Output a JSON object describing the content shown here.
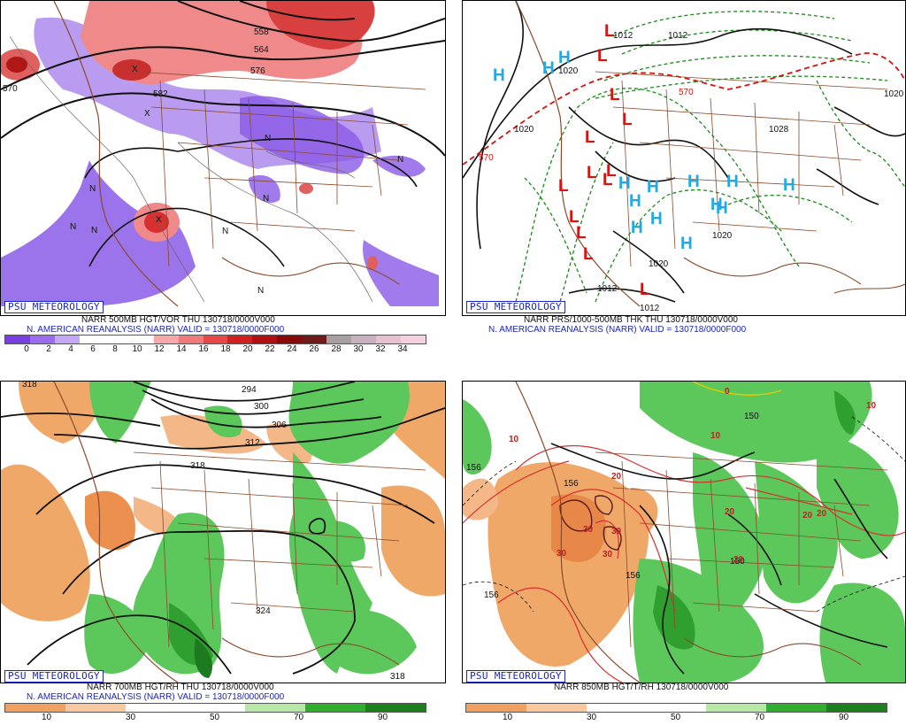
{
  "panels": {
    "vort500": {
      "brand": "PSU METEOROLOGY",
      "line1": "NARR 500MB HGT/VOR THU  130718/0000V000",
      "line2": "N. AMERICAN REANALYSIS (NARR) VALID = 130718/0000F000",
      "contour_labels": [
        "558",
        "564",
        "576",
        "582",
        "570"
      ],
      "colorbar": {
        "colors": [
          "#7a3fe0",
          "#9b6cf0",
          "#c4a8f7",
          "#ffffff",
          "#ffffff",
          "#ffffff",
          "#f7a8a8",
          "#f07a7a",
          "#e84848",
          "#d02020",
          "#b01010",
          "#8a0808",
          "#6e1a1a",
          "#a8a0a0",
          "#c8b0c0",
          "#e8c0d0",
          "#f7d0e0"
        ],
        "ticks": [
          "0",
          "2",
          "4",
          "6",
          "8",
          "10",
          "12",
          "14",
          "16",
          "18",
          "20",
          "22",
          "24",
          "26",
          "28",
          "30",
          "32",
          "34"
        ]
      }
    },
    "thk": {
      "brand": "PSU METEOROLOGY",
      "line1": "NARR PRS/1000-500MB THK THU  130718/0000V000",
      "line2": "N. AMERICAN REANALYSIS (NARR) VALID = 130718/0000F000",
      "contour_labels": [
        "1012",
        "1020",
        "1020",
        "1028",
        "1012",
        "1020",
        "1020",
        "1012",
        "1020",
        "570",
        "570",
        "1012"
      ]
    },
    "rh700": {
      "brand": "PSU METEOROLOGY",
      "line1": "NARR 700MB HGT/RH THU  130718/0000V000",
      "line2": "N. AMERICAN REANALYSIS (NARR) VALID = 130718/0000F000",
      "contour_labels": [
        "318",
        "294",
        "300",
        "306",
        "312",
        "318",
        "324",
        "318"
      ],
      "colorbar": {
        "colors": [
          "#f0a060",
          "#f8c8a0",
          "#ffffff",
          "#ffffff",
          "#b8e8a8",
          "#2fae2f",
          "#1f7f1f"
        ],
        "ticks": [
          "10",
          "30",
          "50",
          "70",
          "90"
        ]
      }
    },
    "t850": {
      "brand": "PSU METEOROLOGY",
      "line1": "NARR 850MB HGT/T/RH 130718/0000V000",
      "contour_labels": [
        "150",
        "156",
        "156",
        "156",
        "156",
        "150",
        "10",
        "10",
        "10",
        "20",
        "20",
        "20",
        "20",
        "30",
        "30",
        "30",
        "30",
        "20",
        "0"
      ],
      "colorbar": {
        "colors": [
          "#f0a060",
          "#f8c8a0",
          "#ffffff",
          "#ffffff",
          "#b8e8a8",
          "#2fae2f",
          "#1f7f1f"
        ],
        "ticks": [
          "10",
          "30",
          "50",
          "70",
          "90"
        ]
      }
    }
  },
  "symbols": {
    "low": "L",
    "high": "H",
    "low_color": "#e01010",
    "high_color": "#20a8e8"
  }
}
